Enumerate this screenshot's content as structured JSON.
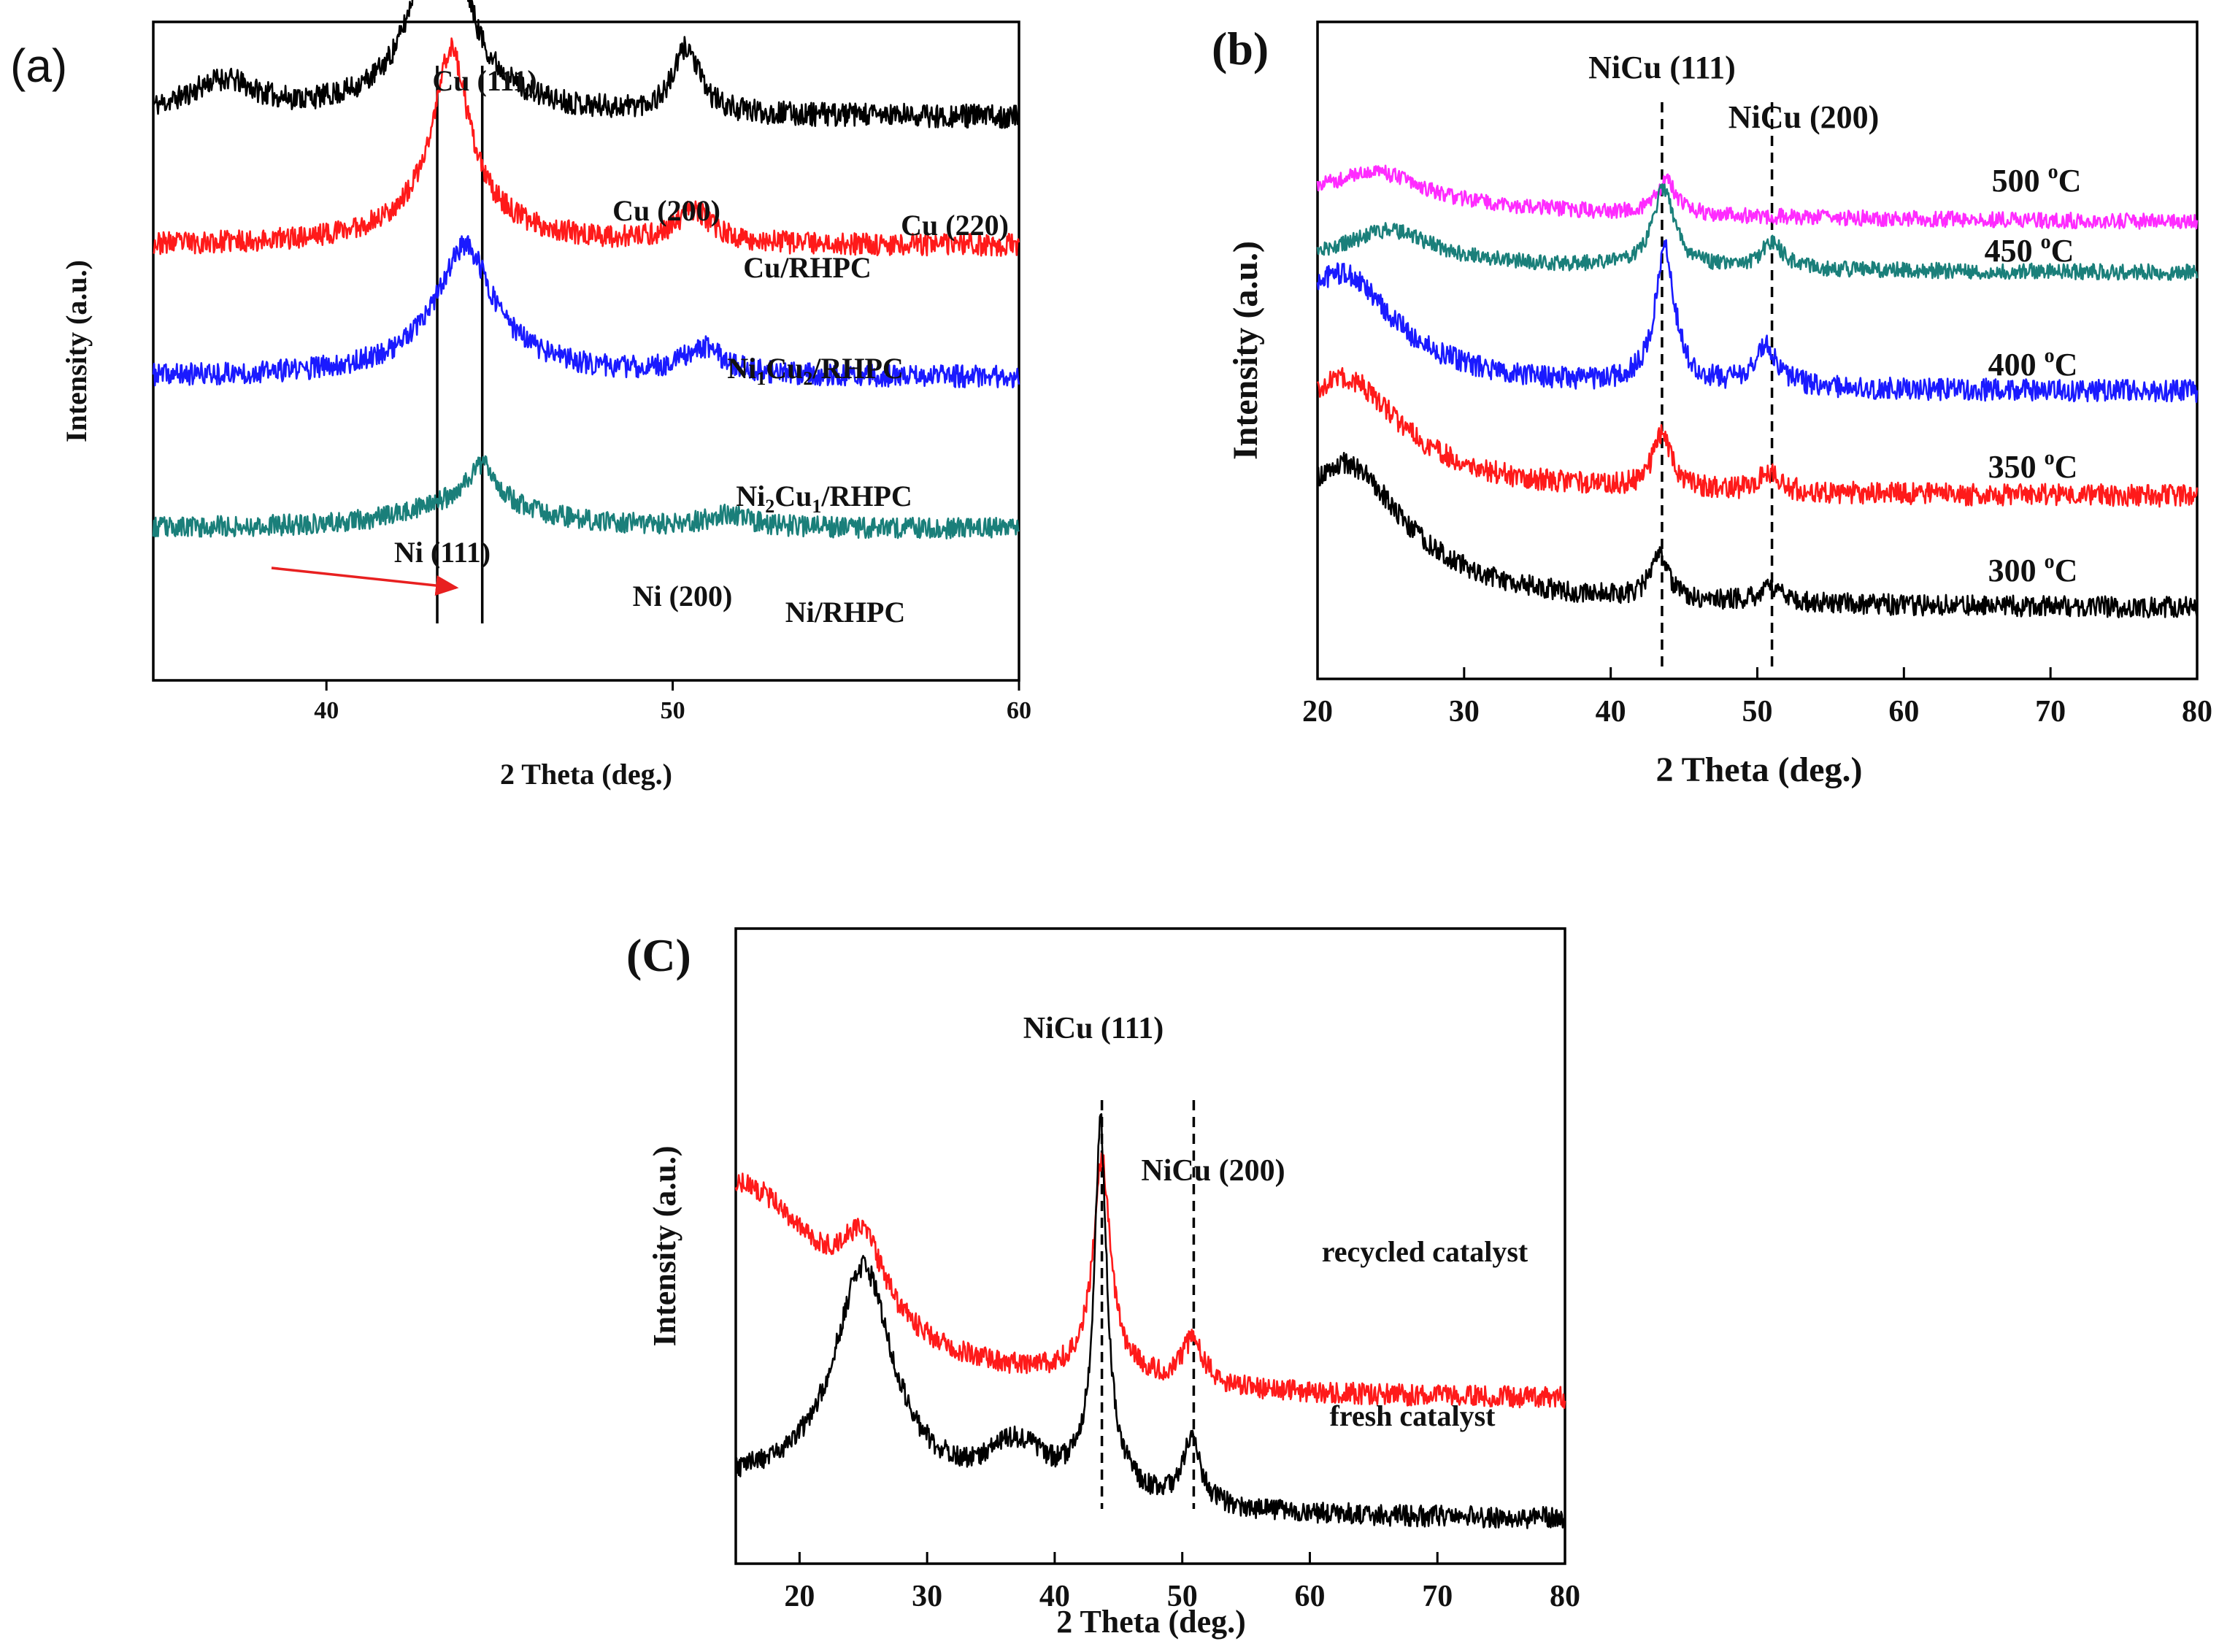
{
  "chart_data": [
    {
      "id": "a",
      "panel_label": "(a)",
      "type": "line",
      "xlabel": "2 Theta (deg.)",
      "ylabel": "Intensity (a.u.)",
      "xlim": [
        35,
        60
      ],
      "xticks": [
        40,
        50,
        60
      ],
      "reference_lines": {
        "style": "solid",
        "x": [
          43.2,
          44.5
        ]
      },
      "series": [
        {
          "name": "Cu/RHPC",
          "color": "#000000",
          "baseline": 0.855,
          "noise": 0.018,
          "seed": 11,
          "features": [
            [
              0,
              0.03,
              6
            ],
            [
              37.0,
              0.05,
              1.2
            ],
            [
              43.3,
              0.48,
              0.45
            ],
            [
              43.3,
              0.09,
              1.6
            ],
            [
              50.4,
              0.1,
              0.45
            ]
          ]
        },
        {
          "name": "Ni1Cu2/RHPC",
          "color": "#ff1a1a",
          "baseline": 0.66,
          "noise": 0.017,
          "seed": 23,
          "features": [
            [
              43.6,
              0.25,
              0.6
            ],
            [
              43.6,
              0.05,
              2.0
            ],
            [
              50.6,
              0.05,
              0.6
            ]
          ]
        },
        {
          "name": "Ni2Cu1/RHPC",
          "color": "#1a1aff",
          "baseline": 0.46,
          "noise": 0.017,
          "seed": 37,
          "features": [
            [
              44.0,
              0.16,
              0.9
            ],
            [
              44.0,
              0.04,
              2.2
            ],
            [
              50.9,
              0.04,
              0.7
            ]
          ]
        },
        {
          "name": "Ni/RHPC",
          "color": "#1a7f7a",
          "baseline": 0.23,
          "noise": 0.016,
          "seed": 53,
          "features": [
            [
              44.5,
              0.06,
              0.5
            ],
            [
              44.2,
              0.04,
              2.2
            ],
            [
              51.6,
              0.02,
              0.7
            ]
          ]
        }
      ],
      "annotations": {
        "cu111": "Cu (111)",
        "cu200": "Cu (200)",
        "cu220": "Cu (220)",
        "ni111": "Ni (111)",
        "ni200": "Ni (200)",
        "arrow_color": "#e82020"
      },
      "curve_labels": [
        {
          "parts": [
            [
              "Cu/RHPC",
              false
            ]
          ]
        },
        {
          "parts": [
            [
              "Ni",
              false
            ],
            [
              "1",
              true
            ],
            [
              "Cu",
              false
            ],
            [
              "2",
              true
            ],
            [
              "/RHPC",
              false
            ]
          ]
        },
        {
          "parts": [
            [
              "Ni",
              false
            ],
            [
              "2",
              true
            ],
            [
              "Cu",
              false
            ],
            [
              "1",
              true
            ],
            [
              "/RHPC",
              false
            ]
          ]
        },
        {
          "parts": [
            [
              "Ni/RHPC",
              false
            ]
          ]
        }
      ]
    },
    {
      "id": "b",
      "panel_label": "(b)",
      "type": "line",
      "xlabel": "2 Theta (deg.)",
      "ylabel": "Intensity (a.u.)",
      "xlim": [
        20,
        80
      ],
      "xticks": [
        20,
        30,
        40,
        50,
        60,
        70,
        80
      ],
      "reference_lines": {
        "style": "dashed",
        "x": [
          43.5,
          51.0
        ]
      },
      "peak_labels": [
        "NiCu (111)",
        "NiCu (200)"
      ],
      "series": [
        {
          "name": "500 °C",
          "label_main": "500 ",
          "label_sup": "o",
          "label_unit": "C",
          "color": "#ff2bff",
          "baseline": 0.69,
          "noise": 0.012,
          "seed": 71,
          "features": [
            [
              0,
              0.055,
              28
            ],
            [
              24.0,
              0.05,
              4.0
            ],
            [
              43.8,
              0.05,
              0.8
            ]
          ]
        },
        {
          "name": "450 °C",
          "label_main": "450 ",
          "label_sup": "o",
          "label_unit": "C",
          "color": "#1a7f7a",
          "baseline": 0.615,
          "noise": 0.012,
          "seed": 83,
          "features": [
            [
              0,
              0.03,
              30
            ],
            [
              25.0,
              0.05,
              3.5
            ],
            [
              43.6,
              0.12,
              0.9
            ],
            [
              51.0,
              0.04,
              0.9
            ]
          ]
        },
        {
          "name": "400 °C",
          "label_main": "400 ",
          "label_sup": "o",
          "label_unit": "C",
          "color": "#1a1aff",
          "baseline": 0.435,
          "noise": 0.017,
          "seed": 97,
          "features": [
            [
              0,
              0.02,
              28
            ],
            [
              21.5,
              0.17,
              4.5
            ],
            [
              43.7,
              0.21,
              0.8
            ],
            [
              50.6,
              0.06,
              1.0
            ]
          ]
        },
        {
          "name": "350 °C",
          "label_main": "350 ",
          "label_sup": "o",
          "label_unit": "C",
          "color": "#ff1a1a",
          "baseline": 0.275,
          "noise": 0.017,
          "seed": 109,
          "features": [
            [
              0,
              0.02,
              30
            ],
            [
              21.8,
              0.17,
              4.8
            ],
            [
              43.5,
              0.08,
              0.8
            ],
            [
              50.8,
              0.03,
              0.8
            ]
          ]
        },
        {
          "name": "300 °C",
          "label_main": "300 ",
          "label_sup": "o",
          "label_unit": "C",
          "color": "#000000",
          "baseline": 0.105,
          "noise": 0.016,
          "seed": 131,
          "features": [
            [
              0,
              0.02,
              30
            ],
            [
              21.8,
              0.21,
              5.0
            ],
            [
              43.3,
              0.07,
              0.7
            ],
            [
              50.9,
              0.025,
              0.8
            ]
          ]
        }
      ]
    },
    {
      "id": "c",
      "panel_label": "(C)",
      "type": "line",
      "xlabel": "2 Theta (deg.)",
      "ylabel": "Intensity (a.u.)",
      "xlim": [
        15,
        80
      ],
      "xticks": [
        20,
        30,
        40,
        50,
        60,
        70,
        80
      ],
      "reference_lines": {
        "style": "dashed",
        "x": [
          43.7,
          50.9
        ]
      },
      "peak_labels": [
        "NiCu (111)",
        "NiCu (200)"
      ],
      "series": [
        {
          "name": "recycled catalyst",
          "color": "#ff1a1a",
          "baseline": 0.255,
          "noise": 0.017,
          "seed": 151,
          "features": [
            [
              15,
              0.34,
              9
            ],
            [
              25.0,
              0.12,
              2.0
            ],
            [
              43.7,
              0.3,
              0.75
            ],
            [
              43.7,
              0.05,
              2.0
            ],
            [
              50.8,
              0.07,
              1.1
            ]
          ]
        },
        {
          "name": "fresh catalyst",
          "color": "#000000",
          "baseline": 0.065,
          "noise": 0.017,
          "seed": 173,
          "features": [
            [
              25.0,
              0.35,
              2.8
            ],
            [
              15,
              0.06,
              20
            ],
            [
              37.0,
              0.08,
              3.0
            ],
            [
              43.6,
              0.52,
              0.55
            ],
            [
              43.6,
              0.07,
              2.0
            ],
            [
              50.7,
              0.1,
              0.9
            ]
          ]
        }
      ]
    }
  ]
}
